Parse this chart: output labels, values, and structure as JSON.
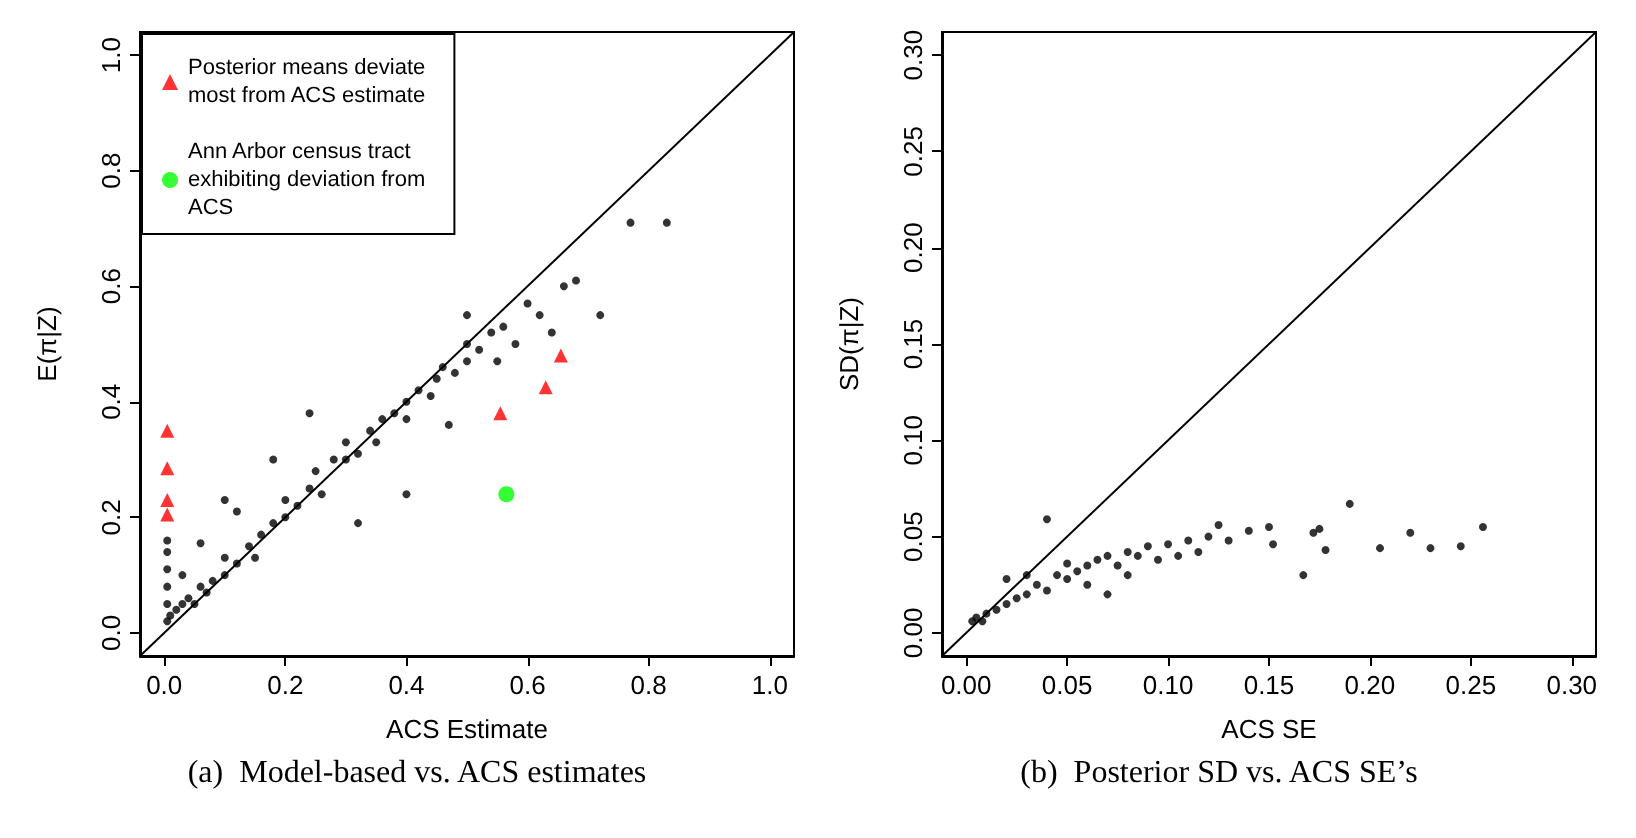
{
  "chart_data": [
    {
      "type": "scatter",
      "xlabel": "ACS Estimate",
      "ylabel": "E(π|Z)",
      "annotations": [
        "(a)  Model-based vs. ACS estimates"
      ],
      "xlim": [
        -0.04,
        1.04
      ],
      "ylim": [
        -0.04,
        1.04
      ],
      "xticks": [
        {
          "value": 0,
          "label": "0.0"
        },
        0.2,
        0.4,
        0.6,
        0.8,
        {
          "value": 1,
          "label": "1.0"
        }
      ],
      "yticks": [
        {
          "value": 0,
          "label": "0.0"
        },
        0.2,
        0.4,
        0.6,
        0.8,
        {
          "value": 1,
          "label": "1.0"
        }
      ],
      "grid": false,
      "legend": "top left",
      "marker": "circle",
      "series": [
        {
          "type": "line",
          "marker": "none",
          "line_style": "solid",
          "color": "#000000",
          "x": [
            -0.04,
            1.04
          ],
          "values": [
            -0.04,
            1.04
          ]
        },
        {
          "color": "#000000",
          "x": [
            0.005,
            0.005,
            0.005,
            0.005,
            0.005,
            0.005,
            0.01,
            0.02,
            0.03,
            0.04,
            0.05,
            0.06,
            0.07,
            0.08,
            0.1,
            0.1,
            0.12,
            0.14,
            0.15,
            0.16,
            0.18,
            0.2,
            0.2,
            0.22,
            0.24,
            0.25,
            0.26,
            0.28,
            0.3,
            0.3,
            0.32,
            0.34,
            0.35,
            0.36,
            0.38,
            0.4,
            0.4,
            0.42,
            0.44,
            0.45,
            0.46,
            0.48,
            0.5,
            0.5,
            0.52,
            0.54,
            0.55,
            0.56,
            0.58,
            0.6,
            0.62,
            0.64,
            0.66,
            0.68,
            0.72,
            0.77,
            0.83,
            0.1,
            0.18,
            0.24,
            0.4,
            0.32,
            0.06,
            0.12,
            0.47,
            0.5,
            0.03
          ],
          "values": [
            0.02,
            0.05,
            0.08,
            0.11,
            0.14,
            0.16,
            0.03,
            0.04,
            0.05,
            0.06,
            0.05,
            0.08,
            0.07,
            0.09,
            0.1,
            0.13,
            0.12,
            0.15,
            0.13,
            0.17,
            0.19,
            0.2,
            0.23,
            0.22,
            0.25,
            0.28,
            0.24,
            0.3,
            0.3,
            0.33,
            0.31,
            0.35,
            0.33,
            0.37,
            0.38,
            0.4,
            0.37,
            0.42,
            0.41,
            0.44,
            0.46,
            0.45,
            0.5,
            0.47,
            0.49,
            0.52,
            0.47,
            0.53,
            0.5,
            0.57,
            0.55,
            0.52,
            0.6,
            0.61,
            0.55,
            0.71,
            0.71,
            0.23,
            0.3,
            0.38,
            0.24,
            0.19,
            0.155,
            0.21,
            0.36,
            0.55,
            0.1
          ]
        },
        {
          "name": "Posterior means deviate most from ACS estimate",
          "color": "#ff0000",
          "marker": "triangle",
          "x": [
            0.005,
            0.005,
            0.005,
            0.005,
            0.555,
            0.63,
            0.655
          ],
          "values": [
            0.35,
            0.285,
            0.23,
            0.205,
            0.38,
            0.425,
            0.48
          ]
        },
        {
          "name": "Ann Arbor census tract exhibiting deviation from ACS",
          "color": "#00ff00",
          "marker": "circle",
          "x": [
            0.565
          ],
          "values": [
            0.24
          ]
        }
      ]
    },
    {
      "type": "scatter",
      "xlabel": "ACS SE",
      "ylabel": "SD(π|Z)",
      "annotations": [
        "(b)  Posterior SD vs. ACS SE’s"
      ],
      "xlim": [
        -0.012,
        0.312
      ],
      "ylim": [
        -0.012,
        0.312
      ],
      "xticks": [
        {
          "value": 0,
          "label": "0.00"
        },
        0.05,
        {
          "value": 0.1,
          "label": "0.10"
        },
        0.15,
        {
          "value": 0.2,
          "label": "0.20"
        },
        0.25,
        {
          "value": 0.3,
          "label": "0.30"
        }
      ],
      "yticks": [
        {
          "value": 0,
          "label": "0.00"
        },
        0.05,
        {
          "value": 0.1,
          "label": "0.10"
        },
        0.15,
        {
          "value": 0.2,
          "label": "0.20"
        },
        0.25,
        {
          "value": 0.3,
          "label": "0.30"
        }
      ],
      "grid": false,
      "marker": "circle",
      "series": [
        {
          "type": "line",
          "marker": "none",
          "line_style": "solid",
          "color": "#000000",
          "x": [
            -0.012,
            0.312
          ],
          "values": [
            -0.012,
            0.312
          ]
        },
        {
          "color": "#000000",
          "x": [
            0.003,
            0.005,
            0.008,
            0.01,
            0.015,
            0.02,
            0.02,
            0.025,
            0.03,
            0.03,
            0.035,
            0.04,
            0.04,
            0.045,
            0.05,
            0.05,
            0.055,
            0.06,
            0.06,
            0.065,
            0.07,
            0.07,
            0.075,
            0.08,
            0.08,
            0.085,
            0.09,
            0.095,
            0.1,
            0.105,
            0.11,
            0.115,
            0.12,
            0.125,
            0.13,
            0.14,
            0.15,
            0.152,
            0.167,
            0.172,
            0.175,
            0.178,
            0.19,
            0.205,
            0.22,
            0.23,
            0.245,
            0.256
          ],
          "values": [
            0.006,
            0.008,
            0.006,
            0.01,
            0.012,
            0.015,
            0.028,
            0.018,
            0.02,
            0.03,
            0.025,
            0.022,
            0.059,
            0.03,
            0.028,
            0.036,
            0.032,
            0.035,
            0.025,
            0.038,
            0.04,
            0.02,
            0.035,
            0.042,
            0.03,
            0.04,
            0.045,
            0.038,
            0.046,
            0.04,
            0.048,
            0.042,
            0.05,
            0.056,
            0.048,
            0.053,
            0.055,
            0.046,
            0.03,
            0.052,
            0.054,
            0.043,
            0.067,
            0.044,
            0.052,
            0.044,
            0.045,
            0.055
          ]
        }
      ]
    }
  ]
}
